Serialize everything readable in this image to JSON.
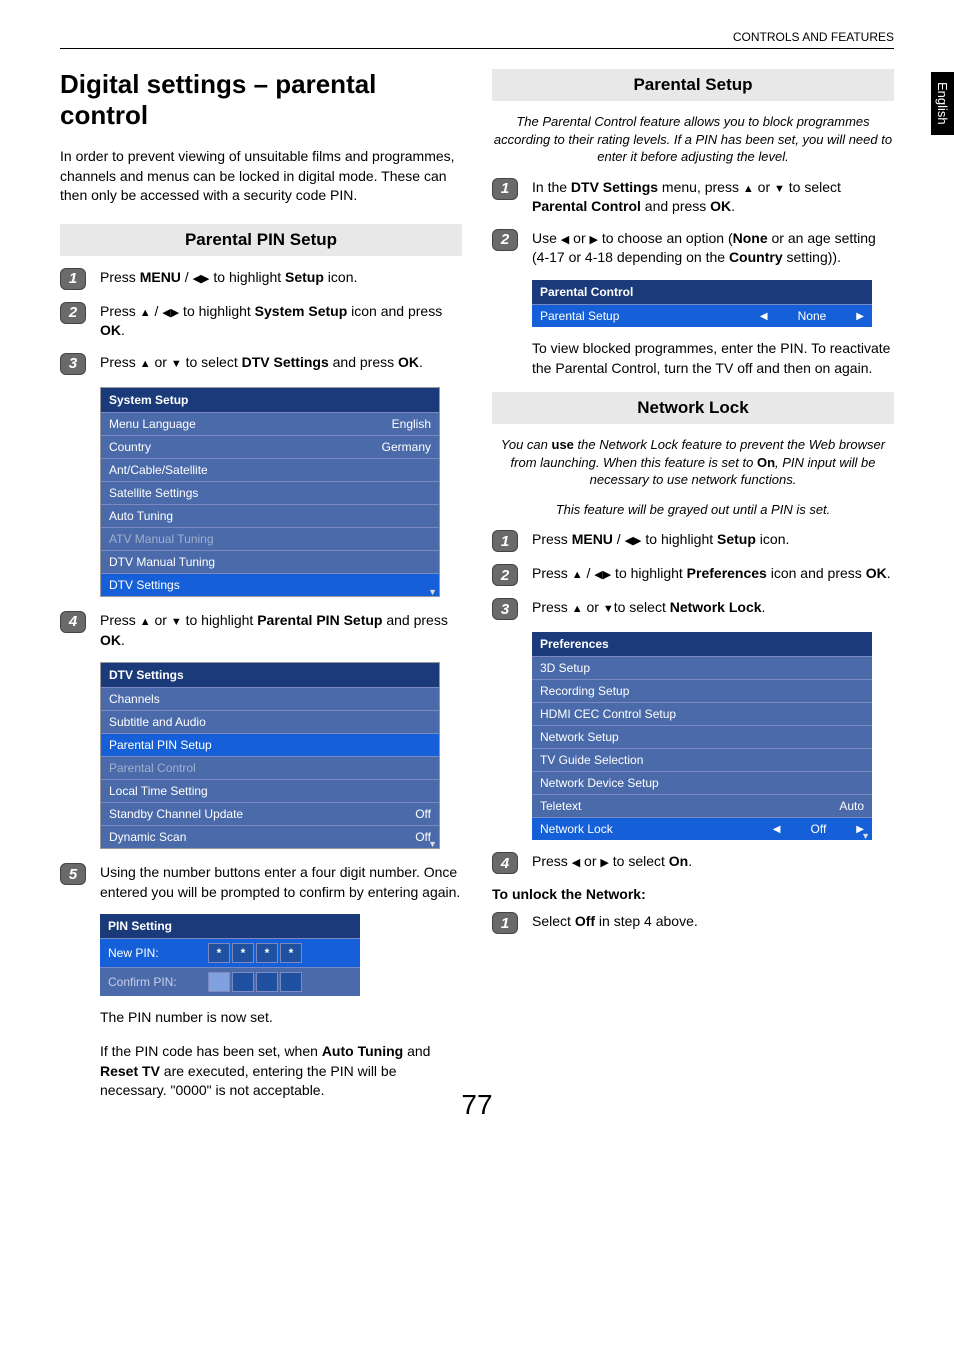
{
  "header": {
    "breadcrumb": "CONTROLS AND FEATURES"
  },
  "sideTab": "English",
  "pageNumber": "77",
  "left": {
    "title": "Digital settings – parental control",
    "intro": "In order to prevent viewing of unsuitable films and programmes, channels and menus can be locked in digital mode. These can then only be accessed with a security code PIN.",
    "section1": {
      "heading": "Parental PIN Setup",
      "steps": {
        "s1": {
          "num": "1",
          "pre": "Press ",
          "b1": "MENU",
          "mid1": " / ",
          "mid2": " to highlight ",
          "b2": "Setup",
          "post": " icon."
        },
        "s2": {
          "num": "2",
          "pre": "Press ",
          "mid1": " / ",
          "mid2": " to highlight ",
          "b1": "System Setup",
          "post": " icon and press ",
          "b2": "OK",
          "end": "."
        },
        "s3": {
          "num": "3",
          "pre": "Press ",
          "mid": " or ",
          "mid2": " to select ",
          "b1": "DTV Settings",
          "post": " and press ",
          "b2": "OK",
          "end": "."
        },
        "s4": {
          "num": "4",
          "pre": "Press ",
          "mid": " or ",
          "mid2": " to highlight ",
          "b1": "Parental PIN Setup",
          "post": " and press ",
          "b2": "OK",
          "end": "."
        },
        "s5": {
          "num": "5",
          "text": "Using the number buttons enter a four digit number. Once entered you will be prompted to confirm by entering again."
        }
      },
      "systemSetup": {
        "title": "System Setup",
        "rows": [
          {
            "label": "Menu Language",
            "value": "English"
          },
          {
            "label": "Country",
            "value": "Germany"
          },
          {
            "label": "Ant/Cable/Satellite",
            "value": ""
          },
          {
            "label": "Satellite Settings",
            "value": ""
          },
          {
            "label": "Auto Tuning",
            "value": ""
          },
          {
            "label": "ATV Manual Tuning",
            "value": "",
            "disabled": true
          },
          {
            "label": "DTV Manual Tuning",
            "value": ""
          },
          {
            "label": "DTV Settings",
            "value": "",
            "selected": true,
            "arrowDown": true
          }
        ]
      },
      "dtvSettings": {
        "title": "DTV Settings",
        "rows": [
          {
            "label": "Channels",
            "value": ""
          },
          {
            "label": "Subtitle and Audio",
            "value": ""
          },
          {
            "label": "Parental PIN Setup",
            "value": "",
            "selected": true
          },
          {
            "label": "Parental Control",
            "value": "",
            "disabled": true
          },
          {
            "label": "Local Time Setting",
            "value": ""
          },
          {
            "label": "Standby Channel Update",
            "value": "Off"
          },
          {
            "label": "Dynamic Scan",
            "value": "Off",
            "arrowDown": true
          }
        ]
      },
      "pinSetting": {
        "title": "PIN Setting",
        "newPinLabel": "New PIN:",
        "confirmPinLabel": "Confirm PIN:",
        "star": "*"
      },
      "afterPin1": "The PIN number is now set.",
      "afterPin2_pre": "If the PIN code has been set, when ",
      "afterPin2_b1": "Auto Tuning",
      "afterPin2_mid": " and ",
      "afterPin2_b2": "Reset TV",
      "afterPin2_post": " are executed, entering the PIN will be necessary. \"0000\" is not acceptable."
    }
  },
  "right": {
    "section1": {
      "heading": "Parental Setup",
      "italic": "The Parental Control feature allows you to block programmes according to their rating levels. If a PIN has been set, you will need to enter it before adjusting the level.",
      "steps": {
        "s1": {
          "num": "1",
          "pre": "In the ",
          "b1": "DTV Settings",
          "mid": " menu, press ",
          "mid2": " or ",
          "mid3": " to select ",
          "b2": "Parental Control",
          "post": " and press ",
          "b3": "OK",
          "end": "."
        },
        "s2": {
          "num": "2",
          "pre": "Use ",
          "mid1": " or ",
          "mid2": " to choose an option (",
          "b1": "None",
          "mid3": " or an age setting (4-17 or 4-18 depending on the ",
          "b2": "Country",
          "post": " setting))."
        }
      },
      "parentalMenu": {
        "title": "Parental Control",
        "row": {
          "label": "Parental Setup",
          "value": "None"
        }
      },
      "afterText": "To view blocked programmes, enter the PIN. To reactivate the Parental Control, turn the TV off and then on again."
    },
    "section2": {
      "heading": "Network Lock",
      "italic1_pre": "You can ",
      "italic1_b": "use",
      "italic1_mid": " the Network Lock feature to prevent the Web browser from launching. When this feature is set to ",
      "italic1_b2": "On",
      "italic1_post": ", PIN input will be necessary to use network functions.",
      "italic2": "This feature will be grayed out until a PIN is set.",
      "steps": {
        "s1": {
          "num": "1",
          "pre": "Press ",
          "b1": "MENU",
          "mid1": " / ",
          "mid2": " to highlight ",
          "b2": "Setup",
          "post": " icon."
        },
        "s2": {
          "num": "2",
          "pre": "Press ",
          "mid1": " / ",
          "mid2": " to highlight ",
          "b1": "Preferences",
          "post": " icon and press ",
          "b2": "OK",
          "end": "."
        },
        "s3": {
          "num": "3",
          "pre": "Press ",
          "mid": " or ",
          "mid2": "to select ",
          "b1": "Network Lock",
          "end": "."
        },
        "s4": {
          "num": "4",
          "pre": "Press ",
          "mid": " or ",
          "mid2": " to select ",
          "b1": "On",
          "end": "."
        }
      },
      "prefsMenu": {
        "title": "Preferences",
        "rows": [
          {
            "label": "3D Setup",
            "value": ""
          },
          {
            "label": "Recording Setup",
            "value": ""
          },
          {
            "label": "HDMI CEC Control Setup",
            "value": ""
          },
          {
            "label": "Network Setup",
            "value": ""
          },
          {
            "label": "TV Guide Selection",
            "value": ""
          },
          {
            "label": "Network Device Setup",
            "value": ""
          },
          {
            "label": "Teletext",
            "value": "Auto"
          },
          {
            "label": "Network Lock",
            "value": "Off",
            "selected": true,
            "arrows": true,
            "arrowDown": true
          }
        ]
      },
      "unlockHeading": "To unlock the Network:",
      "unlockStep": {
        "num": "1",
        "pre": "Select ",
        "b1": "Off",
        "post": " in step 4 above."
      }
    }
  }
}
